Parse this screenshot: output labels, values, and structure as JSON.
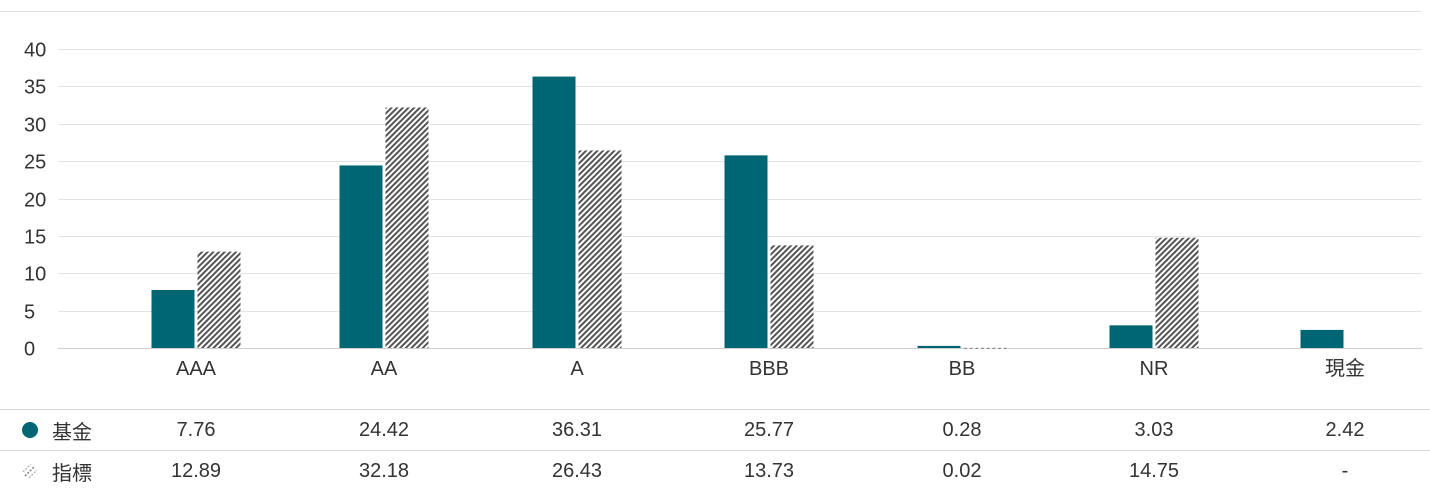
{
  "chart_data": {
    "type": "bar",
    "categories": [
      "AAA",
      "AA",
      "A",
      "BBB",
      "BB",
      "NR",
      "現金"
    ],
    "series": [
      {
        "name": "基金",
        "values": [
          7.76,
          24.42,
          36.31,
          25.77,
          0.28,
          3.03,
          2.42
        ],
        "display": [
          "7.76",
          "24.42",
          "36.31",
          "25.77",
          "0.28",
          "3.03",
          "2.42"
        ]
      },
      {
        "name": "指標",
        "values": [
          12.89,
          32.18,
          26.43,
          13.73,
          0.02,
          14.75,
          null
        ],
        "display": [
          "12.89",
          "32.18",
          "26.43",
          "13.73",
          "0.02",
          "14.75",
          "-"
        ]
      }
    ],
    "y_ticks": [
      "0",
      "5",
      "10",
      "15",
      "20",
      "25",
      "30",
      "35",
      "40"
    ],
    "ylim": [
      0,
      40
    ],
    "grid": true,
    "legend": "table-below",
    "colors": {
      "fund": "#006673",
      "index_hatch": "#555555",
      "grid": "#e3e3e3",
      "axis": "#cfcfcf"
    }
  }
}
